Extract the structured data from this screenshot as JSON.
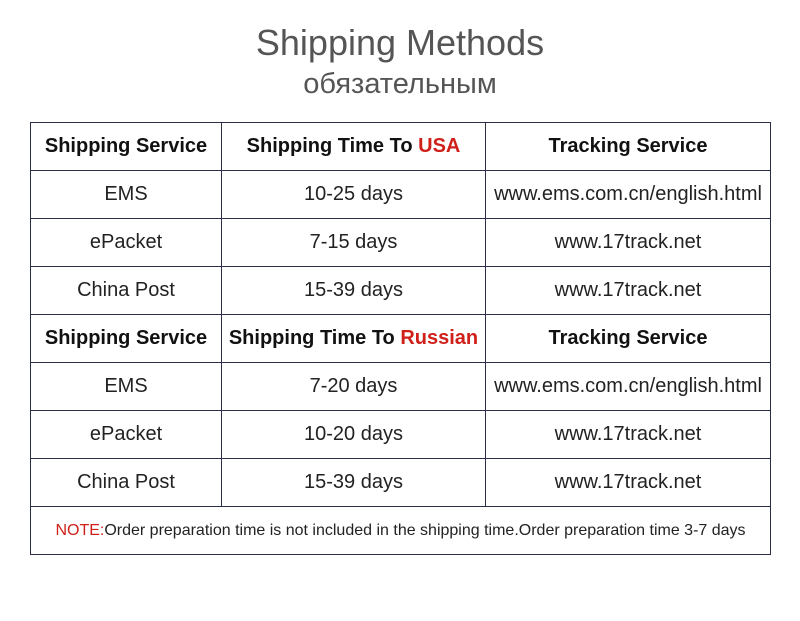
{
  "header": {
    "title": "Shipping Methods",
    "subtitle": "обязательным"
  },
  "sections": [
    {
      "columns": {
        "service": "Shipping Service",
        "time_prefix": "Shipping Time To",
        "time_highlight": "USA",
        "tracking": "Tracking Service"
      },
      "rows": [
        [
          "EMS",
          "10-25 days",
          "www.ems.com.cn/english.html"
        ],
        [
          "ePacket",
          "7-15 days",
          "www.17track.net"
        ],
        [
          "China Post",
          "15-39 days",
          "www.17track.net"
        ]
      ]
    },
    {
      "columns": {
        "service": "Shipping Service",
        "time_prefix": "Shipping Time To",
        "time_highlight": "Russian",
        "tracking": "Tracking Service"
      },
      "rows": [
        [
          "EMS",
          "7-20 days",
          "www.ems.com.cn/english.html"
        ],
        [
          "ePacket",
          "10-20 days",
          "www.17track.net"
        ],
        [
          "China Post",
          "15-39 days",
          "www.17track.net"
        ]
      ]
    }
  ],
  "note": {
    "label": "NOTE:",
    "text": "Order preparation time is not included in the shipping time.Order preparation time 3-7 days"
  }
}
